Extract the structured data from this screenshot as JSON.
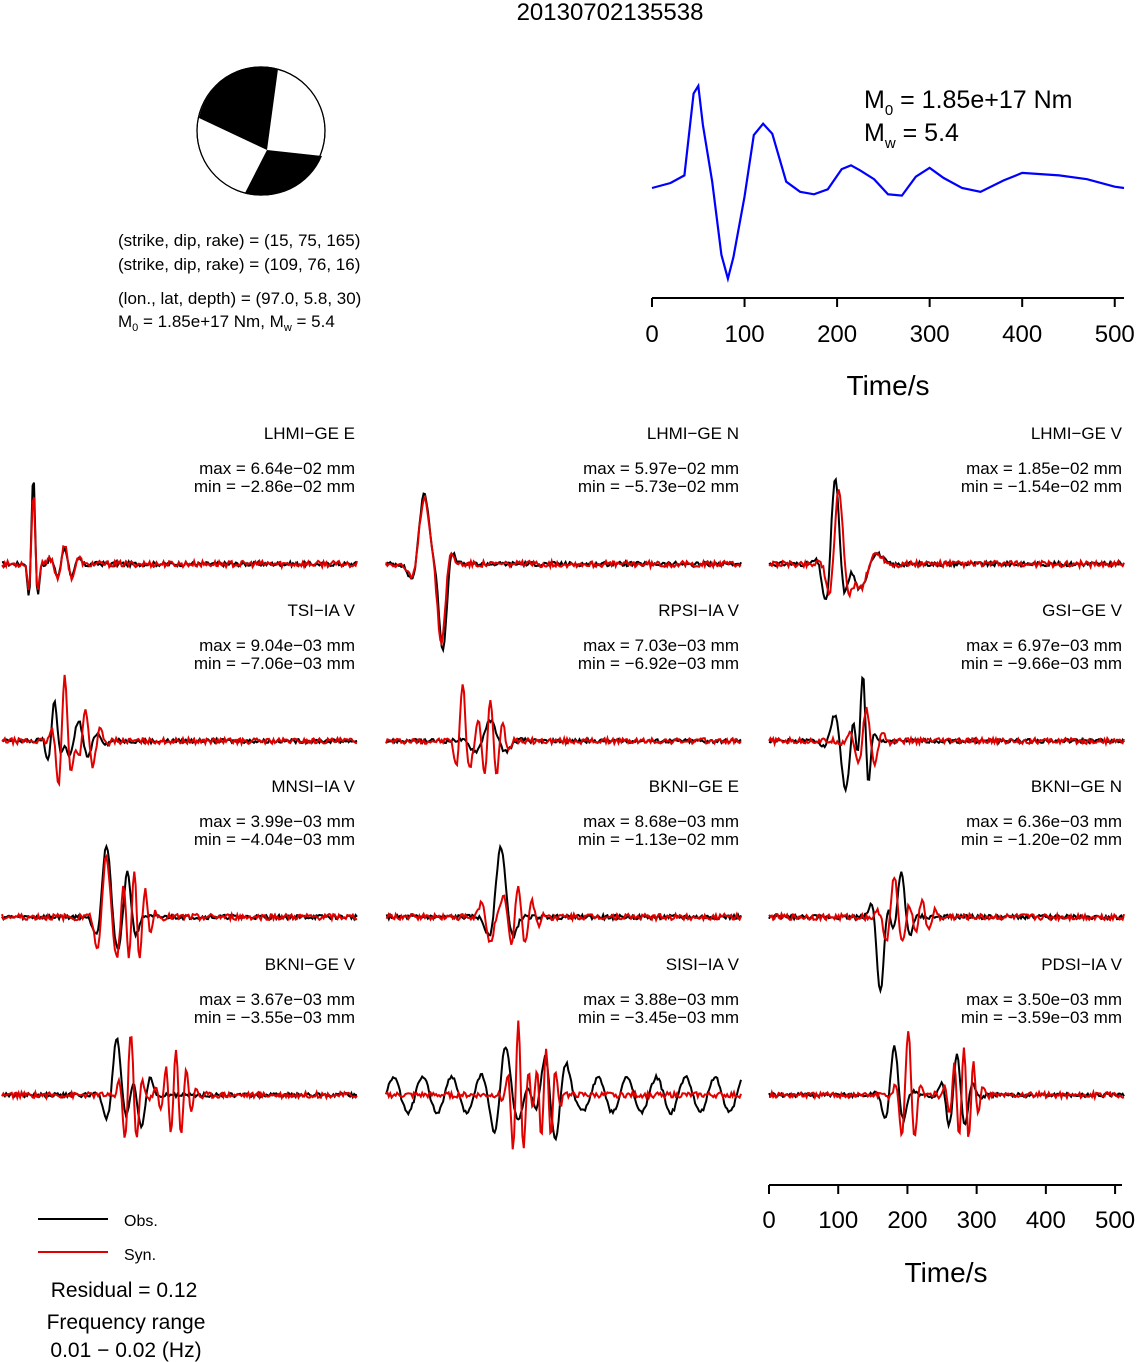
{
  "title": "20130702135538",
  "mechanism": {
    "plane1": "(strike, dip, rake) = (15, 75, 165)",
    "plane2": "(strike, dip, rake) = (109, 76, 16)",
    "location": "(lon., lat, depth) = (97.0, 5.8, 30)",
    "moment_main": "1.85e+17 Nm, ",
    "mw_value": " = 5.4"
  },
  "stf": {
    "m0_value": " = 1.85e+17 Nm",
    "mw_value": " = 5.4",
    "color": "#0000ff"
  },
  "labels": {
    "m": "M",
    "sub0": "0",
    "subw": "w",
    "time_axis": "Time/s"
  },
  "legend": {
    "obs": "Obs.",
    "syn": "Syn.",
    "obs_color": "#000000",
    "syn_color": "#e00000"
  },
  "footer": {
    "residual": "Residual = 0.12",
    "freq1": "Frequency range",
    "freq2": "0.01 − 0.02 (Hz)"
  },
  "chart_data": {
    "type": "line",
    "xlabel": "Time/s",
    "xlim": [
      0,
      510
    ],
    "xticks": [
      0,
      100,
      200,
      300,
      400,
      500
    ],
    "stations": [
      {
        "label": "LHMI−GE E",
        "max": "max = 6.64e−02 mm",
        "min": "min = −2.86e−02 mm"
      },
      {
        "label": "LHMI−GE N",
        "max": "max = 5.97e−02 mm",
        "min": "min = −5.73e−02 mm"
      },
      {
        "label": "LHMI−GE V",
        "max": "max = 1.85e−02 mm",
        "min": "min = −1.54e−02 mm"
      },
      {
        "label": "TSI−IA V",
        "max": "max = 9.04e−03 mm",
        "min": "min = −7.06e−03 mm"
      },
      {
        "label": "RPSI−IA V",
        "max": "max = 7.03e−03 mm",
        "min": "min = −6.92e−03 mm"
      },
      {
        "label": "GSI−GE V",
        "max": "max = 6.97e−03 mm",
        "min": "min = −9.66e−03 mm"
      },
      {
        "label": "MNSI−IA V",
        "max": "max = 3.99e−03 mm",
        "min": "min = −4.04e−03 mm"
      },
      {
        "label": "BKNI−GE E",
        "max": "max = 8.68e−03 mm",
        "min": "min = −1.13e−02 mm"
      },
      {
        "label": "BKNI−GE N",
        "max": "max = 6.36e−03 mm",
        "min": "min = −1.20e−02 mm"
      },
      {
        "label": "BKNI−GE V",
        "max": "max = 3.67e−03 mm",
        "min": "min = −3.55e−03 mm"
      },
      {
        "label": "SISI−IA V",
        "max": "max = 3.88e−03 mm",
        "min": "min = −3.45e−03 mm"
      },
      {
        "label": "PDSI−IA V",
        "max": "max = 3.50e−03 mm",
        "min": "min = −3.59e−03 mm"
      }
    ]
  }
}
